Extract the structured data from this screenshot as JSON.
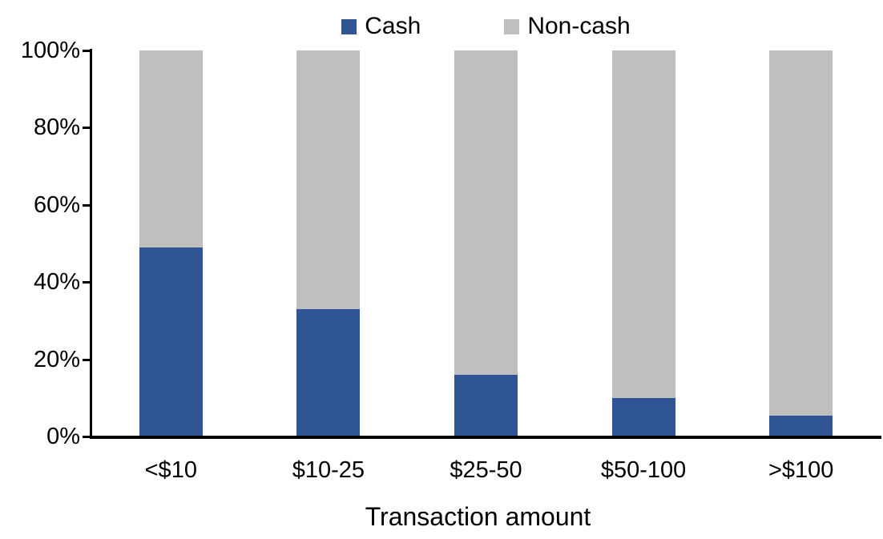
{
  "chart_data": {
    "type": "bar",
    "stacked": true,
    "stacked_total": 100,
    "title": "",
    "xlabel": "Transaction amount",
    "ylabel": "",
    "categories": [
      "<$10",
      "$10-25",
      "$25-50",
      "$50-100",
      ">$100"
    ],
    "series": [
      {
        "name": "Cash",
        "color": "#2F5594",
        "values": [
          49,
          33,
          16,
          10,
          5.5
        ]
      },
      {
        "name": "Non-cash",
        "color": "#BFBFBF",
        "values": [
          51,
          67,
          84,
          90,
          94.5
        ]
      }
    ],
    "ylim": [
      0,
      100
    ],
    "ytick_values": [
      0,
      20,
      40,
      60,
      80,
      100
    ],
    "ytick_labels": [
      "0%",
      "20%",
      "40%",
      "60%",
      "80%",
      "100%"
    ],
    "legend_position": "top",
    "grid": false,
    "colors": {
      "axis": "#000000",
      "text": "#000000",
      "background": "#ffffff"
    }
  }
}
